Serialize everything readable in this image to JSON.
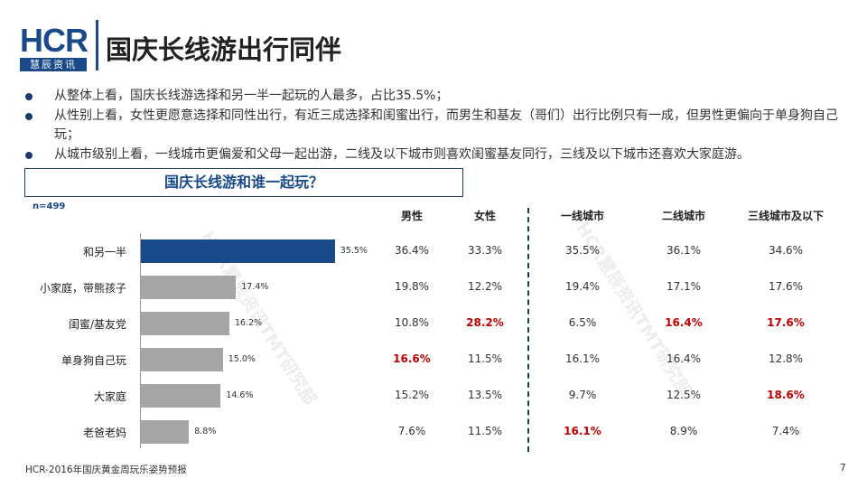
{
  "brand": {
    "logo_text": "HCR",
    "logo_sub": "慧辰资讯"
  },
  "page_title": "国庆长线游出行同伴",
  "bullets": [
    "从整体上看，国庆长线游选择和另一半一起玩的人最多，占比35.5%；",
    "从性别上看，女性更愿意选择和同性出行，有近三成选择和闺蜜出行，而男生和基友（哥们）出行比例只有一成，但男性更偏向于单身狗自己玩；",
    "从城市级别上看，一线城市更偏爱和父母一起出游，二线及以下城市则喜欢闺蜜基友同行，三线及以下城市还喜欢大家庭游。"
  ],
  "question": "国庆长线游和谁一起玩？",
  "sample_size": "n=499",
  "watermarks": [
    "HCR慧辰资讯TMT研究部",
    "HCR慧辰资讯TMT研究部"
  ],
  "footer": "HCR-2016年国庆黄金周玩乐姿势预报",
  "page_number": "7",
  "colors": {
    "brand": "#1a4a8a",
    "bar_highlight": "#1a4a8a",
    "bar_default": "#a6a6a6",
    "highlight_text": "#c00000"
  },
  "chart_data": {
    "type": "bar",
    "orientation": "horizontal",
    "categories": [
      "和另一半",
      "小家庭，带熊孩子",
      "闺蜜/基友党",
      "单身狗自己玩",
      "大家庭",
      "老爸老妈"
    ],
    "values": [
      35.5,
      17.4,
      16.2,
      15.0,
      14.6,
      8.8
    ],
    "value_labels": [
      "35.5%",
      "17.4%",
      "16.2%",
      "15.0%",
      "14.6%",
      "8.8%"
    ],
    "highlight_index": 0
  },
  "breakdown_table": {
    "columns": [
      "男性",
      "女性",
      "一线城市",
      "二线城市",
      "三线城市及以下"
    ],
    "rows": [
      [
        "36.4%",
        "33.3%",
        "35.5%",
        "36.1%",
        "34.6%"
      ],
      [
        "19.8%",
        "12.2%",
        "19.4%",
        "17.1%",
        "17.6%"
      ],
      [
        "10.8%",
        "28.2%",
        "6.5%",
        "16.4%",
        "17.6%"
      ],
      [
        "16.6%",
        "11.5%",
        "16.1%",
        "16.4%",
        "12.8%"
      ],
      [
        "15.2%",
        "13.5%",
        "9.7%",
        "12.5%",
        "18.6%"
      ],
      [
        "7.6%",
        "11.5%",
        "16.1%",
        "8.9%",
        "7.4%"
      ]
    ],
    "highlighted": [
      [
        2,
        1
      ],
      [
        2,
        3
      ],
      [
        2,
        4
      ],
      [
        3,
        0
      ],
      [
        4,
        4
      ],
      [
        5,
        2
      ]
    ]
  }
}
